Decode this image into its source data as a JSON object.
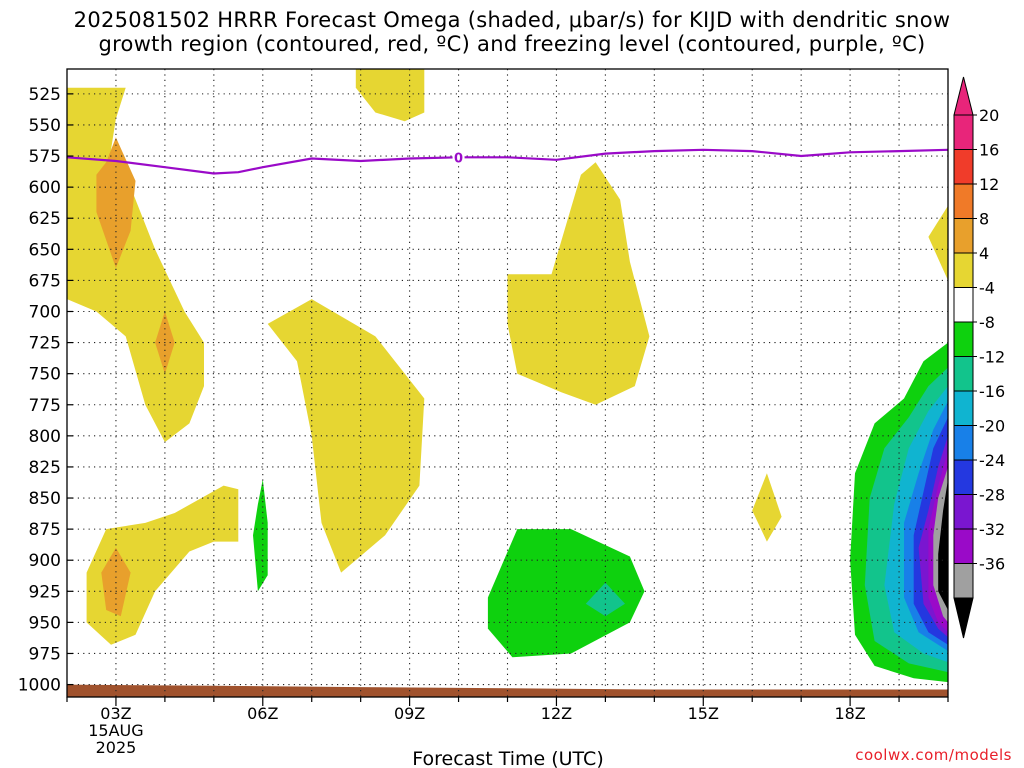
{
  "title": "2025081502 HRRR Forecast Omega (shaded, μbar/s) for KIJD with dendritic snow\ngrowth region (contoured, red, ºC) and freezing level (contoured, purple, ºC)",
  "credit": "coolwx.com/models",
  "chart_data": {
    "type": "heatmap",
    "xlabel": "Forecast Time (UTC)",
    "ylabel": "",
    "x_unit": "hour UTC (15 Aug 2025)",
    "xlim": [
      2,
      20
    ],
    "ylim": [
      1010,
      505
    ],
    "x_ticks": [
      {
        "x": 3,
        "label": "03Z",
        "date": "15AUG",
        "year": "2025"
      },
      {
        "x": 6,
        "label": "06Z"
      },
      {
        "x": 9,
        "label": "09Z"
      },
      {
        "x": 12,
        "label": "12Z"
      },
      {
        "x": 15,
        "label": "15Z"
      },
      {
        "x": 18,
        "label": "18Z"
      }
    ],
    "y_ticks": [
      525,
      550,
      575,
      600,
      625,
      650,
      675,
      700,
      725,
      750,
      775,
      800,
      825,
      850,
      875,
      900,
      925,
      950,
      975,
      1000
    ],
    "grid": true,
    "colorbar": {
      "labels": [
        "20",
        "16",
        "12",
        "8",
        "4",
        "-4",
        "-8",
        "-12",
        "-16",
        "-20",
        "-24",
        "-28",
        "-32",
        "-36"
      ],
      "colors": [
        "#e8257a",
        "#f03c2a",
        "#f07a28",
        "#e8a02c",
        "#e6d632",
        "#ffffff",
        "#0ed10e",
        "#12c48c",
        "#10b4d0",
        "#1880e8",
        "#2438e0",
        "#7a16d0",
        "#9a0ac8",
        "#a0a0a0"
      ],
      "over_color": "#e8257a",
      "under_color": "#000000"
    },
    "freezing_level": {
      "label": "0",
      "color": "#9a0ac8",
      "points": [
        [
          2,
          576
        ],
        [
          3,
          579
        ],
        [
          4,
          584
        ],
        [
          5,
          589
        ],
        [
          5.5,
          588
        ],
        [
          6,
          584
        ],
        [
          7,
          577
        ],
        [
          8,
          579
        ],
        [
          9,
          577
        ],
        [
          10,
          576
        ],
        [
          11,
          576
        ],
        [
          12,
          578
        ],
        [
          13,
          573
        ],
        [
          14,
          571
        ],
        [
          15,
          570
        ],
        [
          16,
          571
        ],
        [
          17,
          575
        ],
        [
          18,
          572
        ],
        [
          19,
          571
        ],
        [
          20,
          570
        ]
      ]
    },
    "omega_regions": [
      {
        "value": 4,
        "color": "#e6d632",
        "points": [
          [
            2,
            520
          ],
          [
            3.2,
            520
          ],
          [
            3,
            545
          ],
          [
            2.9,
            570
          ],
          [
            3.3,
            600
          ],
          [
            3.8,
            650
          ],
          [
            4.4,
            700
          ],
          [
            4.8,
            725
          ],
          [
            4.8,
            760
          ],
          [
            4.5,
            790
          ],
          [
            4,
            805
          ],
          [
            3.6,
            775
          ],
          [
            3.2,
            720
          ],
          [
            2.6,
            700
          ],
          [
            2,
            690
          ]
        ]
      },
      {
        "value": 4,
        "color": "#e6d632",
        "points": [
          [
            7.9,
            505
          ],
          [
            9.3,
            505
          ],
          [
            9.3,
            540
          ],
          [
            8.9,
            547
          ],
          [
            8.3,
            540
          ],
          [
            7.9,
            520
          ]
        ]
      },
      {
        "value": 4,
        "color": "#e6d632",
        "points": [
          [
            6.1,
            710
          ],
          [
            7,
            690
          ],
          [
            8.3,
            720
          ],
          [
            9.3,
            770
          ],
          [
            9.2,
            840
          ],
          [
            8.5,
            880
          ],
          [
            7.6,
            910
          ],
          [
            7.2,
            870
          ],
          [
            7,
            800
          ],
          [
            6.7,
            740
          ]
        ]
      },
      {
        "value": 4,
        "color": "#e6d632",
        "points": [
          [
            12.5,
            590
          ],
          [
            12.8,
            580
          ],
          [
            13.3,
            610
          ],
          [
            13.5,
            660
          ],
          [
            13.9,
            720
          ],
          [
            13.6,
            760
          ],
          [
            12.8,
            775
          ],
          [
            12.1,
            765
          ],
          [
            11.2,
            750
          ],
          [
            11,
            710
          ],
          [
            11,
            670
          ],
          [
            11.9,
            670
          ],
          [
            12.2,
            630
          ]
        ]
      },
      {
        "value": 4,
        "color": "#e6d632",
        "points": [
          [
            2.4,
            910
          ],
          [
            2.8,
            875
          ],
          [
            3.6,
            870
          ],
          [
            4.2,
            862
          ],
          [
            5.2,
            840
          ],
          [
            5.5,
            843
          ],
          [
            5.5,
            885
          ],
          [
            5,
            885
          ],
          [
            4.5,
            893
          ],
          [
            3.8,
            925
          ],
          [
            3.4,
            960
          ],
          [
            2.9,
            968
          ],
          [
            2.4,
            950
          ]
        ]
      },
      {
        "value": 4,
        "color": "#e6d632",
        "points": [
          [
            16.3,
            830
          ],
          [
            16.6,
            865
          ],
          [
            16.3,
            885
          ],
          [
            16,
            860
          ]
        ]
      },
      {
        "value": 4,
        "color": "#e6d632",
        "points": [
          [
            20,
            615
          ],
          [
            19.6,
            640
          ],
          [
            20,
            675
          ]
        ]
      },
      {
        "value": 8,
        "color": "#e8a02c",
        "points": [
          [
            2.8,
            580
          ],
          [
            3,
            560
          ],
          [
            3.4,
            595
          ],
          [
            3.3,
            635
          ],
          [
            3,
            665
          ],
          [
            2.6,
            620
          ],
          [
            2.6,
            590
          ]
        ]
      },
      {
        "value": 8,
        "color": "#e8a02c",
        "points": [
          [
            4,
            700
          ],
          [
            4.2,
            725
          ],
          [
            4,
            750
          ],
          [
            3.8,
            725
          ]
        ]
      },
      {
        "value": 8,
        "color": "#e8a02c",
        "points": [
          [
            2.7,
            910
          ],
          [
            3,
            890
          ],
          [
            3.3,
            910
          ],
          [
            3.1,
            945
          ],
          [
            2.8,
            940
          ]
        ]
      },
      {
        "value": -4,
        "color": "#0ed10e",
        "points": [
          [
            5.9,
            855
          ],
          [
            6,
            835
          ],
          [
            6.1,
            870
          ],
          [
            6.1,
            912
          ],
          [
            5.9,
            925
          ],
          [
            5.8,
            880
          ]
        ]
      },
      {
        "value": -4,
        "color": "#0ed10e",
        "points": [
          [
            10.6,
            930
          ],
          [
            11.2,
            875
          ],
          [
            12.3,
            875
          ],
          [
            13.5,
            897
          ],
          [
            13.8,
            925
          ],
          [
            13.5,
            950
          ],
          [
            12.3,
            975
          ],
          [
            11.1,
            978
          ],
          [
            10.6,
            955
          ]
        ]
      },
      {
        "value": -8,
        "color": "#12c48c",
        "points": [
          [
            12.6,
            935
          ],
          [
            13,
            918
          ],
          [
            13.4,
            935
          ],
          [
            13,
            945
          ]
        ]
      },
      {
        "value": -4,
        "color": "#0ed10e",
        "points": [
          [
            20,
            725
          ],
          [
            19.5,
            740
          ],
          [
            19.1,
            770
          ],
          [
            18.5,
            790
          ],
          [
            18.1,
            830
          ],
          [
            18,
            900
          ],
          [
            18.1,
            960
          ],
          [
            18.5,
            985
          ],
          [
            19.3,
            995
          ],
          [
            20,
            998
          ]
        ]
      },
      {
        "value": -8,
        "color": "#12c48c",
        "points": [
          [
            20,
            745
          ],
          [
            19.6,
            760
          ],
          [
            19.2,
            785
          ],
          [
            18.7,
            810
          ],
          [
            18.4,
            850
          ],
          [
            18.3,
            920
          ],
          [
            18.5,
            965
          ],
          [
            19.2,
            983
          ],
          [
            20,
            990
          ]
        ]
      },
      {
        "value": -12,
        "color": "#10b4d0",
        "points": [
          [
            20,
            760
          ],
          [
            19.6,
            780
          ],
          [
            19.2,
            810
          ],
          [
            18.9,
            855
          ],
          [
            18.7,
            920
          ],
          [
            18.9,
            958
          ],
          [
            19.5,
            975
          ],
          [
            20,
            982
          ]
        ]
      },
      {
        "value": -16,
        "color": "#1880e8",
        "points": [
          [
            20,
            772
          ],
          [
            19.7,
            795
          ],
          [
            19.4,
            830
          ],
          [
            19.1,
            870
          ],
          [
            19.1,
            930
          ],
          [
            19.4,
            958
          ],
          [
            20,
            973
          ]
        ]
      },
      {
        "value": -20,
        "color": "#2438e0",
        "points": [
          [
            20,
            785
          ],
          [
            19.7,
            810
          ],
          [
            19.5,
            845
          ],
          [
            19.3,
            880
          ],
          [
            19.3,
            935
          ],
          [
            19.6,
            958
          ],
          [
            20,
            968
          ]
        ]
      },
      {
        "value": -24,
        "color": "#7a16d0",
        "points": [
          [
            20,
            800
          ],
          [
            19.8,
            825
          ],
          [
            19.6,
            860
          ],
          [
            19.4,
            890
          ],
          [
            19.5,
            935
          ],
          [
            19.8,
            955
          ],
          [
            20,
            962
          ]
        ]
      },
      {
        "value": -28,
        "color": "#9a0ac8",
        "points": [
          [
            20,
            812
          ],
          [
            19.8,
            840
          ],
          [
            19.6,
            875
          ],
          [
            19.6,
            930
          ],
          [
            19.8,
            950
          ],
          [
            20,
            958
          ]
        ]
      },
      {
        "value": -32,
        "color": "#a0a0a0",
        "points": [
          [
            20,
            825
          ],
          [
            19.8,
            850
          ],
          [
            19.7,
            880
          ],
          [
            19.7,
            920
          ],
          [
            19.9,
            945
          ],
          [
            20,
            950
          ]
        ]
      },
      {
        "value": -36,
        "color": "#000000",
        "points": [
          [
            20,
            835
          ],
          [
            19.9,
            860
          ],
          [
            19.8,
            895
          ],
          [
            19.8,
            925
          ],
          [
            20,
            940
          ]
        ]
      }
    ],
    "terrain": {
      "color": "#a0522d",
      "points": [
        [
          2,
          1000
        ],
        [
          5,
          1001
        ],
        [
          8,
          1002
        ],
        [
          11,
          1003
        ],
        [
          14,
          1004
        ],
        [
          17,
          1004
        ],
        [
          20,
          1004
        ]
      ]
    }
  }
}
